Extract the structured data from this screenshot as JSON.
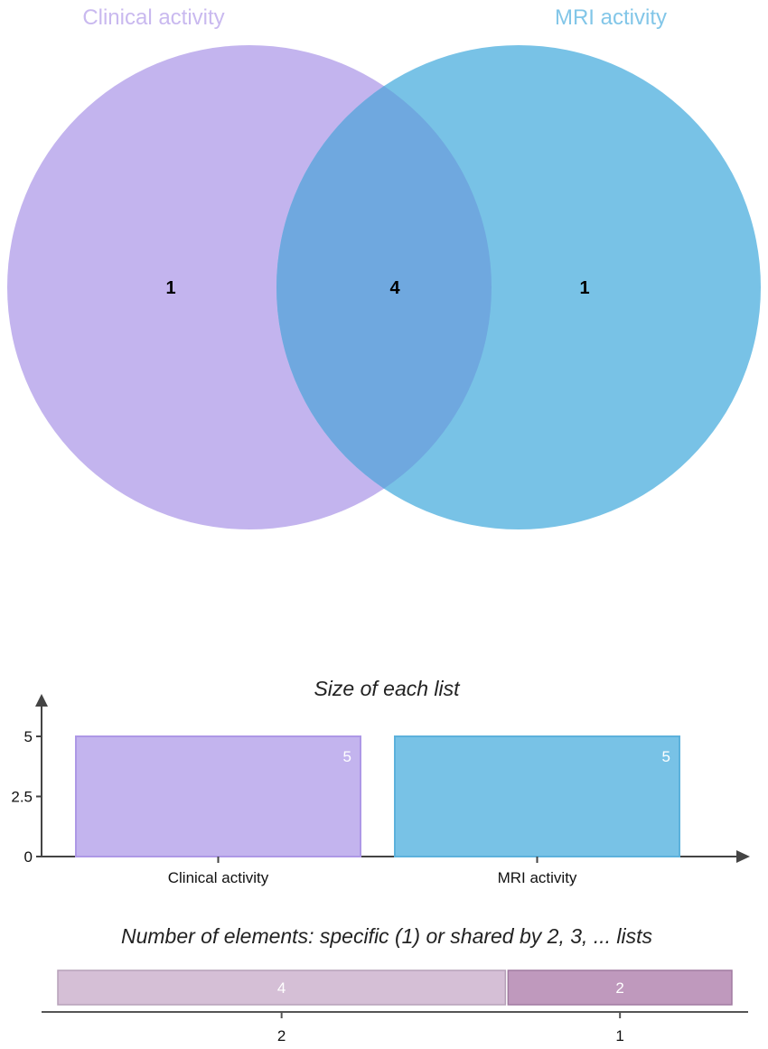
{
  "colors": {
    "set_a": "#c3b4ee",
    "set_b": "#78c2e6",
    "overlap": "#6fa8df",
    "title_a": "#c9b9ef",
    "title_b": "#82c6e8",
    "shared_2": "#d5bfd6",
    "shared_1": "#bf99bd"
  },
  "venn": {
    "sets": [
      {
        "name": "Clinical activity"
      },
      {
        "name": "MRI activity"
      }
    ],
    "regions": {
      "only_a": "1",
      "both": "4",
      "only_b": "1"
    }
  },
  "chart_data": [
    {
      "type": "bar",
      "title": "Size of each list",
      "categories": [
        "Clinical activity",
        "MRI activity"
      ],
      "values": [
        5,
        5
      ],
      "value_labels": [
        "5",
        "5"
      ],
      "ylim": [
        0,
        5
      ],
      "yticks": [
        "0",
        "2.5",
        "5"
      ]
    },
    {
      "type": "bar",
      "orientation": "stacked-horizontal",
      "title": "Number of elements: specific (1) or shared by 2, 3, ... lists",
      "categories": [
        "2",
        "1"
      ],
      "values": [
        4,
        2
      ],
      "value_labels": [
        "4",
        "2"
      ]
    }
  ]
}
